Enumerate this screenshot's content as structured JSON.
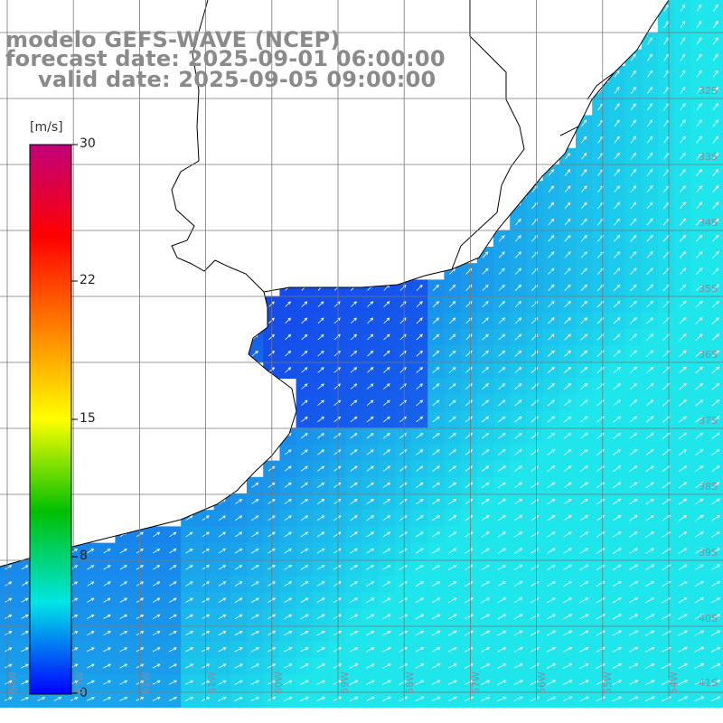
{
  "title": {
    "line1": "modelo GEFS-WAVE (NCEP)",
    "line2": "forecast date: 2025-09-01 06:00:00",
    "line3": "valid date: 2025-09-05 09:00:00"
  },
  "colorbar": {
    "units": "[m/s]",
    "ticks": [
      "30",
      "22",
      "15",
      "8",
      "0"
    ],
    "tick_values": [
      30,
      22,
      15,
      8,
      0
    ],
    "colors": [
      "#c0007a",
      "#ff0000",
      "#ff7f00",
      "#ffff00",
      "#00c000",
      "#00e5e5",
      "#0000ff"
    ]
  },
  "map": {
    "lat_labels": [
      "32S",
      "33S",
      "34S",
      "35S",
      "36S",
      "37S",
      "38S",
      "39S",
      "40S",
      "41S"
    ],
    "lon_labels": [
      "64W",
      "63W",
      "62W",
      "61W",
      "60W",
      "59W",
      "58W",
      "57W",
      "56W",
      "55W",
      "54W"
    ],
    "grid_color": "#777777",
    "land_color": "#ffffff",
    "coast_color": "#000000",
    "arrow_color": "#ffffff"
  }
}
